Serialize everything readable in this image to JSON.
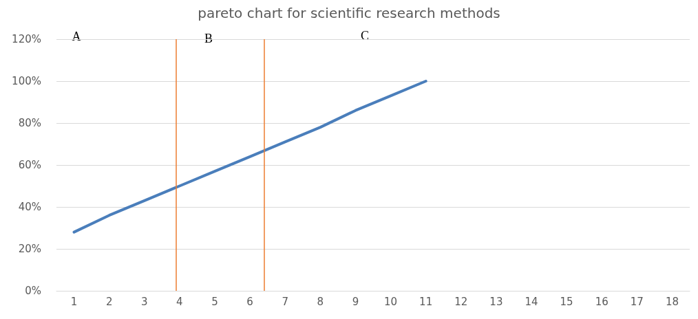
{
  "chart_data": {
    "type": "line",
    "title": "pareto chart for scientific research methods",
    "x": [
      1,
      2,
      3,
      4,
      5,
      6,
      7,
      8,
      9,
      10,
      11
    ],
    "series": [
      {
        "color": "#4a7ebb",
        "values": [
          28,
          36,
          43,
          50,
          57,
          64,
          71,
          78,
          86,
          93,
          100
        ]
      }
    ],
    "xlim": [
      0.5,
      18.5
    ],
    "xticks": [
      1,
      2,
      3,
      4,
      5,
      6,
      7,
      8,
      9,
      10,
      11,
      12,
      13,
      14,
      15,
      16,
      17,
      18
    ],
    "ylim": [
      0,
      120
    ],
    "yticks": [
      {
        "value": 0,
        "label": "0%"
      },
      {
        "value": 20,
        "label": "20%"
      },
      {
        "value": 40,
        "label": "40%"
      },
      {
        "value": 60,
        "label": "60%"
      },
      {
        "value": 80,
        "label": "80%"
      },
      {
        "value": 100,
        "label": "100%"
      },
      {
        "value": 120,
        "label": "120%"
      }
    ],
    "ref_lines": [
      {
        "axis": "x",
        "value": 3.9,
        "color": "#ed7d31"
      },
      {
        "axis": "x",
        "value": 6.4,
        "color": "#ed7d31"
      }
    ],
    "annotations": [
      "A",
      "B",
      "C"
    ],
    "grid": "y",
    "marker": "none",
    "line_style": "solid"
  }
}
